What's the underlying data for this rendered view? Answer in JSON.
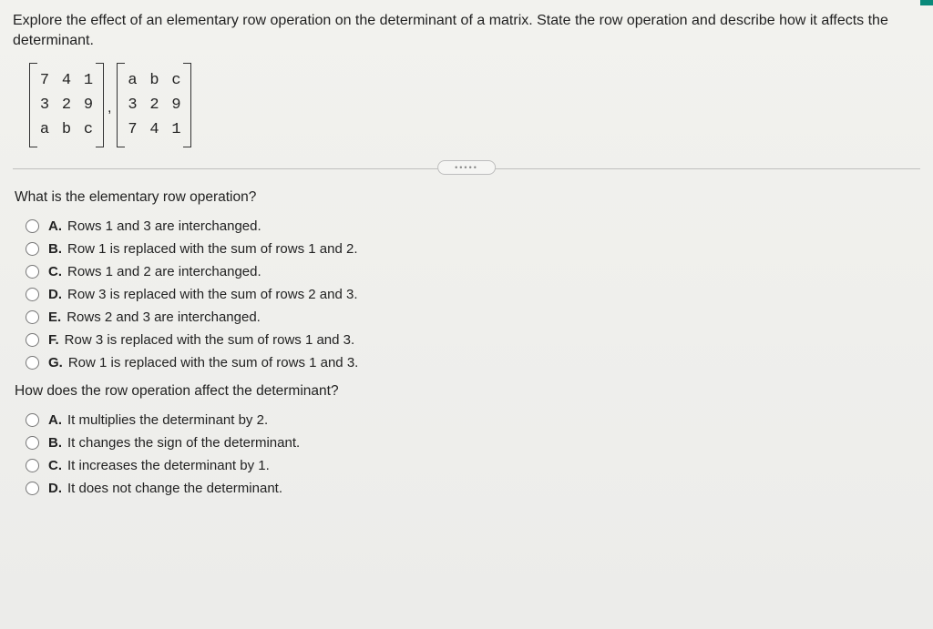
{
  "intro": "Explore the effect of an elementary row operation on the determinant of a matrix. State the row operation and describe how it affects the determinant.",
  "matrices": {
    "left": [
      [
        "7",
        "4",
        "1"
      ],
      [
        "3",
        "2",
        "9"
      ],
      [
        "a",
        "b",
        "c"
      ]
    ],
    "right": [
      [
        "a",
        "b",
        "c"
      ],
      [
        "3",
        "2",
        "9"
      ],
      [
        "7",
        "4",
        "1"
      ]
    ],
    "separator": ","
  },
  "divider_label": "•••••",
  "q1": {
    "prompt": "What is the elementary row operation?",
    "options": [
      {
        "letter": "A.",
        "text": "Rows 1 and 3 are interchanged."
      },
      {
        "letter": "B.",
        "text": "Row 1 is replaced with the sum of rows 1 and 2."
      },
      {
        "letter": "C.",
        "text": "Rows 1 and 2 are interchanged."
      },
      {
        "letter": "D.",
        "text": "Row 3 is replaced with the sum of rows 2 and 3."
      },
      {
        "letter": "E.",
        "text": "Rows 2 and 3 are interchanged."
      },
      {
        "letter": "F.",
        "text": "Row 3 is replaced with the sum of rows 1 and 3."
      },
      {
        "letter": "G.",
        "text": "Row 1 is replaced with the sum of rows 1 and 3."
      }
    ]
  },
  "q2": {
    "prompt": "How does the row operation affect the determinant?",
    "options": [
      {
        "letter": "A.",
        "text": "It multiplies the determinant by 2."
      },
      {
        "letter": "B.",
        "text": "It changes the sign of the determinant."
      },
      {
        "letter": "C.",
        "text": "It increases the determinant by 1."
      },
      {
        "letter": "D.",
        "text": "It does not change the determinant."
      }
    ]
  },
  "colors": {
    "page_bg": "#f5f5f3",
    "text": "#222222",
    "divider": "#bfbfbd",
    "accent_edge": "#0a8a7a"
  }
}
